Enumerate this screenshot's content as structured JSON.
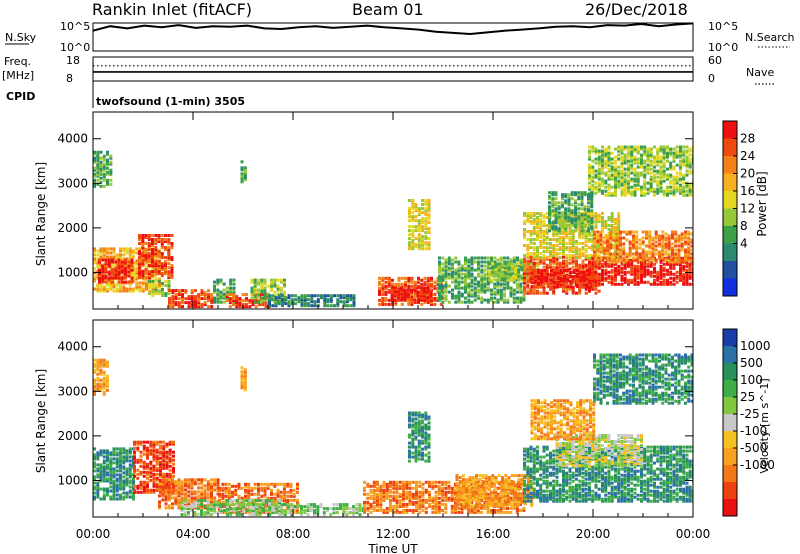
{
  "header": {
    "station": "Rankin Inlet (fitACF)",
    "beam": "Beam 01",
    "date": "26/Dec/2018"
  },
  "noise_panel": {
    "left_label": "N.Sky",
    "left_ticks": [
      "10^5",
      "10^0"
    ],
    "right_label": "N.Search",
    "right_ticks": [
      "10^5",
      "10^0"
    ],
    "series": [
      2.2,
      3.0,
      2.6,
      3.1,
      2.8,
      3.2,
      2.7,
      3.0,
      2.9,
      3.1,
      2.6,
      2.5,
      2.8,
      3.0,
      2.7,
      2.9,
      3.1,
      2.8,
      2.6,
      2.4,
      2.0,
      1.8,
      1.6,
      1.9,
      2.2,
      2.4,
      2.6,
      2.9,
      3.0,
      2.8,
      3.2,
      3.1,
      3.4,
      3.0,
      3.3,
      3.5
    ]
  },
  "freq_panel": {
    "left_label_1": "Freq.",
    "left_label_2": "[MHz]",
    "left_ticks": [
      "18",
      "8"
    ],
    "right_label": "Nave",
    "right_ticks": [
      "60",
      "0"
    ],
    "freq_value": 10.3,
    "nave_value": 38
  },
  "cpid": {
    "label": "CPID",
    "text": "twofsound (1-min) 3505"
  },
  "x_axis": {
    "ticks": [
      "00:00",
      "04:00",
      "08:00",
      "12:00",
      "16:00",
      "20:00",
      "00:00"
    ],
    "label": "Time UT"
  },
  "power_panel": {
    "ylabel": "Slant Range [km]",
    "yticks": [
      "4000",
      "3000",
      "2000",
      "1000"
    ],
    "cbar_label": "Power [dB]",
    "cbar_ticks": [
      "28",
      "24",
      "20",
      "16",
      "12",
      "8",
      "4"
    ],
    "cbar_colors": [
      "#ee1010",
      "#f04a10",
      "#f4801a",
      "#f6b020",
      "#e6d820",
      "#96c838",
      "#3ca048",
      "#2a8a70",
      "#2050a0",
      "#1030e0"
    ]
  },
  "velocity_panel": {
    "ylabel": "Slant Range [km]",
    "yticks": [
      "4000",
      "3000",
      "2000",
      "1000"
    ],
    "cbar_label": "Velocity [m s^-1]",
    "cbar_ticks": [
      "1000",
      "500",
      "100",
      "25",
      "-25",
      "-100",
      "-500",
      "-1000"
    ],
    "cbar_colors": [
      "#1a3ca8",
      "#2c70a8",
      "#28905a",
      "#3eae48",
      "#80c840",
      "#c8c8c8",
      "#f6c020",
      "#f8a020",
      "#f47818",
      "#ee4010",
      "#e81010"
    ]
  },
  "chart_data": {
    "type": "heatmap",
    "x_range_hours": [
      0,
      24
    ],
    "y_range_km": [
      180,
      4600
    ],
    "power_regions": [
      {
        "t0": 0.0,
        "t1": 2.7,
        "r0": 550,
        "r1": 1500,
        "level": 6
      },
      {
        "t0": 0.2,
        "t1": 1.6,
        "r0": 750,
        "r1": 1250,
        "level": 9
      },
      {
        "t0": 1.8,
        "t1": 3.1,
        "r0": 850,
        "r1": 1800,
        "level": 8
      },
      {
        "t0": 0.0,
        "t1": 0.7,
        "r0": 2900,
        "r1": 3700,
        "level": 3
      },
      {
        "t0": 2.2,
        "t1": 3.0,
        "r0": 450,
        "r1": 800,
        "level": 4
      },
      {
        "t0": 3.0,
        "t1": 4.8,
        "r0": 200,
        "r1": 600,
        "level": 8
      },
      {
        "t0": 4.8,
        "t1": 5.6,
        "r0": 300,
        "r1": 800,
        "level": 3
      },
      {
        "t0": 5.3,
        "t1": 7.0,
        "r0": 200,
        "r1": 500,
        "level": 8
      },
      {
        "t0": 5.9,
        "t1": 6.1,
        "r0": 3000,
        "r1": 3500,
        "level": 3
      },
      {
        "t0": 6.3,
        "t1": 7.6,
        "r0": 300,
        "r1": 800,
        "level": 4
      },
      {
        "t0": 7.0,
        "t1": 10.5,
        "r0": 220,
        "r1": 450,
        "level": 2
      },
      {
        "t0": 11.4,
        "t1": 14.0,
        "r0": 250,
        "r1": 850,
        "level": 8
      },
      {
        "t0": 11.9,
        "t1": 13.5,
        "r0": 350,
        "r1": 650,
        "level": 9
      },
      {
        "t0": 12.6,
        "t1": 13.4,
        "r0": 1500,
        "r1": 2600,
        "level": 5
      },
      {
        "t0": 13.8,
        "t1": 17.2,
        "r0": 300,
        "r1": 1300,
        "level": 3
      },
      {
        "t0": 15.8,
        "t1": 17.8,
        "r0": 800,
        "r1": 1200,
        "level": 4
      },
      {
        "t0": 17.2,
        "t1": 20.2,
        "r0": 500,
        "r1": 1350,
        "level": 8
      },
      {
        "t0": 17.5,
        "t1": 20.0,
        "r0": 650,
        "r1": 1050,
        "level": 9
      },
      {
        "t0": 17.2,
        "t1": 21.0,
        "r0": 1300,
        "r1": 2300,
        "level": 5
      },
      {
        "t0": 19.8,
        "t1": 24.0,
        "r0": 700,
        "r1": 1300,
        "level": 9
      },
      {
        "t0": 20.0,
        "t1": 24.0,
        "r0": 1200,
        "r1": 1900,
        "level": 7
      },
      {
        "t0": 19.8,
        "t1": 24.0,
        "r0": 2700,
        "r1": 3800,
        "level": 4
      },
      {
        "t0": 18.2,
        "t1": 20.0,
        "r0": 1900,
        "r1": 2800,
        "level": 3
      }
    ],
    "velocity_regions": [
      {
        "t0": 0.0,
        "t1": 1.6,
        "r0": 550,
        "r1": 1700,
        "level": 8
      },
      {
        "t0": 1.6,
        "t1": 3.2,
        "r0": 700,
        "r1": 1850,
        "level": 1
      },
      {
        "t0": 0.0,
        "t1": 0.6,
        "r0": 2900,
        "r1": 3700,
        "level": 3
      },
      {
        "t0": 2.6,
        "t1": 5.0,
        "r0": 350,
        "r1": 1000,
        "level": 2
      },
      {
        "t0": 5.0,
        "t1": 8.2,
        "r0": 250,
        "r1": 900,
        "level": 2
      },
      {
        "t0": 3.5,
        "t1": 7.5,
        "r0": 200,
        "r1": 550,
        "level": 6
      },
      {
        "t0": 5.9,
        "t1": 6.1,
        "r0": 3000,
        "r1": 3500,
        "level": 3
      },
      {
        "t0": 7.5,
        "t1": 10.8,
        "r0": 200,
        "r1": 450,
        "level": 6
      },
      {
        "t0": 10.8,
        "t1": 17.2,
        "r0": 250,
        "r1": 950,
        "level": 2
      },
      {
        "t0": 12.6,
        "t1": 13.4,
        "r0": 1400,
        "r1": 2500,
        "level": 8
      },
      {
        "t0": 14.5,
        "t1": 17.5,
        "r0": 400,
        "r1": 1100,
        "level": 3
      },
      {
        "t0": 17.2,
        "t1": 24.0,
        "r0": 500,
        "r1": 1750,
        "level": 8
      },
      {
        "t0": 18.5,
        "t1": 22.0,
        "r0": 1300,
        "r1": 2000,
        "level": 5
      },
      {
        "t0": 17.5,
        "t1": 20.0,
        "r0": 1900,
        "r1": 2800,
        "level": 3
      },
      {
        "t0": 20.0,
        "t1": 24.0,
        "r0": 2700,
        "r1": 3800,
        "level": 8
      }
    ]
  }
}
